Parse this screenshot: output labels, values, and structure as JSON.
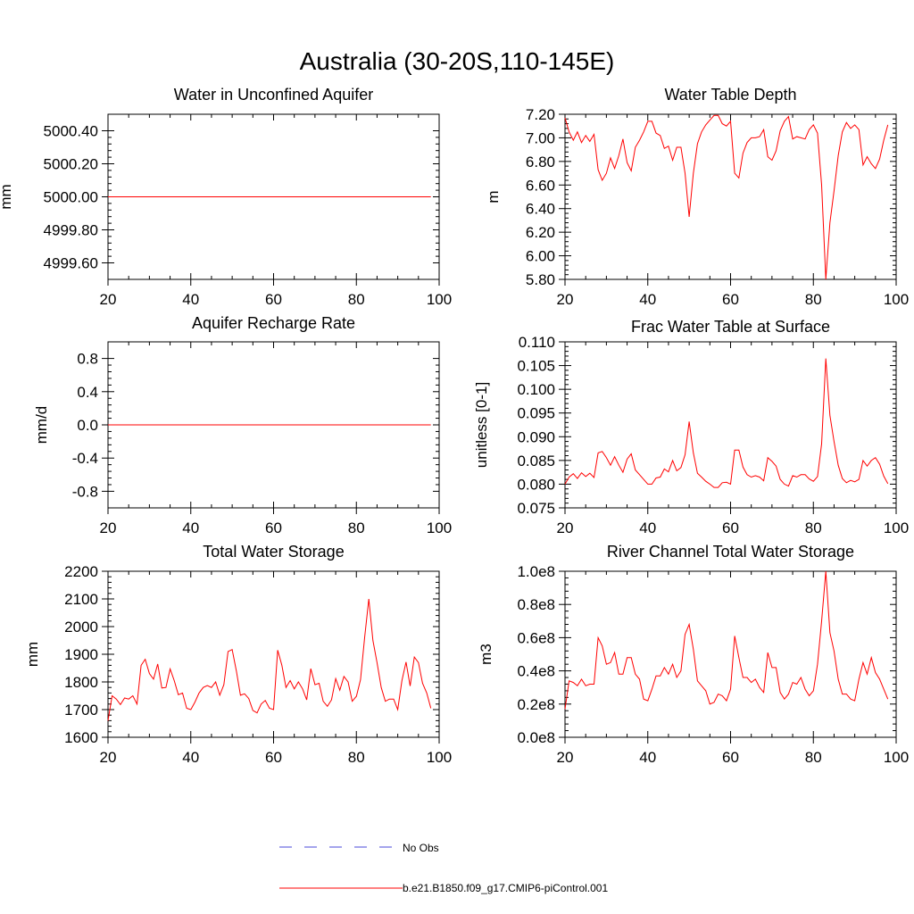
{
  "title": "Australia (30-20S,110-145E)",
  "legend": {
    "entries": [
      {
        "label": "No Obs",
        "style": "dashed",
        "color": "#4a4ad8"
      },
      {
        "label": "b.e21.B1850.f09_g17.CMIP6-piControl.001",
        "style": "solid",
        "color": "#ff0000"
      }
    ]
  },
  "chart_data": [
    {
      "type": "line",
      "title": "Water in Unconfined Aquifer",
      "ylabel": "mm",
      "xlim": [
        20,
        100
      ],
      "ylim": [
        4999.5,
        5000.5
      ],
      "xticks": [
        20,
        40,
        60,
        80,
        100
      ],
      "xtick_labels": [
        "20",
        "40",
        "60",
        "80",
        "100"
      ],
      "yticks": [
        4999.6,
        4999.8,
        5000.0,
        5000.2,
        5000.4
      ],
      "ytick_labels": [
        "4999.60",
        "4999.80",
        "5000.00",
        "5000.20",
        "5000.40"
      ],
      "x_start": 20,
      "series": [
        {
          "name": "b.e21.B1850.f09_g17.CMIP6-piControl.001",
          "color": "#ff0000",
          "values": [
            5000,
            5000,
            5000,
            5000,
            5000,
            5000,
            5000,
            5000,
            5000,
            5000,
            5000,
            5000,
            5000,
            5000,
            5000,
            5000,
            5000,
            5000,
            5000,
            5000,
            5000,
            5000,
            5000,
            5000,
            5000,
            5000,
            5000,
            5000,
            5000,
            5000,
            5000,
            5000,
            5000,
            5000,
            5000,
            5000,
            5000,
            5000,
            5000,
            5000,
            5000,
            5000,
            5000,
            5000,
            5000,
            5000,
            5000,
            5000,
            5000,
            5000,
            5000,
            5000,
            5000,
            5000,
            5000,
            5000,
            5000,
            5000,
            5000,
            5000,
            5000,
            5000,
            5000,
            5000,
            5000,
            5000,
            5000,
            5000,
            5000,
            5000,
            5000,
            5000,
            5000,
            5000,
            5000,
            5000,
            5000,
            5000,
            5000
          ]
        }
      ]
    },
    {
      "type": "line",
      "title": "Water Table Depth",
      "ylabel": "m",
      "xlim": [
        20,
        100
      ],
      "ylim": [
        5.8,
        7.2
      ],
      "xticks": [
        20,
        40,
        60,
        80,
        100
      ],
      "xtick_labels": [
        "20",
        "40",
        "60",
        "80",
        "100"
      ],
      "yticks": [
        5.8,
        6.0,
        6.2,
        6.4,
        6.6,
        6.8,
        7.0,
        7.2
      ],
      "ytick_labels": [
        "5.80",
        "6.00",
        "6.20",
        "6.40",
        "6.60",
        "6.80",
        "7.00",
        "7.20"
      ],
      "x_start": 20,
      "series": [
        {
          "name": "b.e21.B1850.f09_g17.CMIP6-piControl.001",
          "color": "#ff0000",
          "values": [
            7.17,
            7.05,
            6.98,
            7.05,
            6.96,
            7.02,
            6.97,
            7.03,
            6.73,
            6.64,
            6.7,
            6.83,
            6.74,
            6.85,
            6.99,
            6.79,
            6.72,
            6.92,
            6.98,
            7.05,
            7.14,
            7.14,
            7.04,
            7.02,
            6.91,
            6.93,
            6.81,
            6.92,
            6.92,
            6.7,
            6.33,
            6.7,
            6.95,
            7.05,
            7.11,
            7.15,
            7.19,
            7.19,
            7.12,
            7.1,
            7.14,
            6.7,
            6.66,
            6.87,
            6.96,
            7.0,
            7.0,
            7.01,
            7.07,
            6.84,
            6.81,
            6.89,
            7.06,
            7.14,
            7.18,
            6.99,
            7.01,
            7.0,
            6.99,
            7.07,
            7.11,
            7.04,
            6.6,
            5.8,
            6.28,
            6.55,
            6.85,
            7.05,
            7.13,
            7.08,
            7.11,
            7.07,
            6.77,
            6.84,
            6.78,
            6.74,
            6.82,
            6.98,
            7.11
          ]
        }
      ]
    },
    {
      "type": "line",
      "title": "Aquifer Recharge Rate",
      "ylabel": "mm/d",
      "xlim": [
        20,
        100
      ],
      "ylim": [
        -1.0,
        1.0
      ],
      "xticks": [
        20,
        40,
        60,
        80,
        100
      ],
      "xtick_labels": [
        "20",
        "40",
        "60",
        "80",
        "100"
      ],
      "yticks": [
        -0.8,
        -0.4,
        0.0,
        0.4,
        0.8
      ],
      "ytick_labels": [
        "-0.8",
        "-0.4",
        "0.0",
        "0.4",
        "0.8"
      ],
      "x_start": 20,
      "series": [
        {
          "name": "b.e21.B1850.f09_g17.CMIP6-piControl.001",
          "color": "#ff0000",
          "values": [
            0,
            0,
            0,
            0,
            0,
            0,
            0,
            0,
            0,
            0,
            0,
            0,
            0,
            0,
            0,
            0,
            0,
            0,
            0,
            0,
            0,
            0,
            0,
            0,
            0,
            0,
            0,
            0,
            0,
            0,
            0,
            0,
            0,
            0,
            0,
            0,
            0,
            0,
            0,
            0,
            0,
            0,
            0,
            0,
            0,
            0,
            0,
            0,
            0,
            0,
            0,
            0,
            0,
            0,
            0,
            0,
            0,
            0,
            0,
            0,
            0,
            0,
            0,
            0,
            0,
            0,
            0,
            0,
            0,
            0,
            0,
            0,
            0,
            0,
            0,
            0,
            0,
            0,
            0
          ]
        }
      ]
    },
    {
      "type": "line",
      "title": "Frac Water Table at Surface",
      "ylabel": "unitless [0-1]",
      "xlim": [
        20,
        100
      ],
      "ylim": [
        0.075,
        0.11
      ],
      "xticks": [
        20,
        40,
        60,
        80,
        100
      ],
      "xtick_labels": [
        "20",
        "40",
        "60",
        "80",
        "100"
      ],
      "yticks": [
        0.075,
        0.08,
        0.085,
        0.09,
        0.095,
        0.1,
        0.105,
        0.11
      ],
      "ytick_labels": [
        "0.075",
        "0.080",
        "0.085",
        "0.090",
        "0.095",
        "0.100",
        "0.105",
        "0.110"
      ],
      "x_start": 20,
      "series": [
        {
          "name": "b.e21.B1850.f09_g17.CMIP6-piControl.001",
          "color": "#ff0000",
          "values": [
            0.08,
            0.0815,
            0.0822,
            0.0812,
            0.0824,
            0.0816,
            0.0823,
            0.0814,
            0.0866,
            0.0869,
            0.0856,
            0.084,
            0.0858,
            0.084,
            0.0825,
            0.0853,
            0.0864,
            0.083,
            0.082,
            0.081,
            0.08,
            0.08,
            0.0813,
            0.0815,
            0.0832,
            0.0826,
            0.085,
            0.0828,
            0.0835,
            0.0862,
            0.0932,
            0.0866,
            0.0823,
            0.0815,
            0.0806,
            0.08,
            0.0793,
            0.0793,
            0.0803,
            0.0804,
            0.08,
            0.0872,
            0.0872,
            0.0836,
            0.082,
            0.0815,
            0.0818,
            0.0815,
            0.0807,
            0.0856,
            0.0848,
            0.0838,
            0.081,
            0.08,
            0.0796,
            0.0818,
            0.0815,
            0.082,
            0.082,
            0.0811,
            0.0806,
            0.0816,
            0.0885,
            0.1065,
            0.0945,
            0.089,
            0.084,
            0.0812,
            0.0803,
            0.0808,
            0.0805,
            0.081,
            0.085,
            0.0838,
            0.085,
            0.0856,
            0.0842,
            0.0817,
            0.0801
          ]
        }
      ]
    },
    {
      "type": "line",
      "title": "Total Water Storage",
      "ylabel": "mm",
      "xlim": [
        20,
        100
      ],
      "ylim": [
        1600,
        2200
      ],
      "xticks": [
        20,
        40,
        60,
        80,
        100
      ],
      "xtick_labels": [
        "20",
        "40",
        "60",
        "80",
        "100"
      ],
      "yticks": [
        1600,
        1700,
        1800,
        1900,
        2000,
        2100,
        2200
      ],
      "ytick_labels": [
        "1600",
        "1700",
        "1800",
        "1900",
        "2000",
        "2100",
        "2200"
      ],
      "x_start": 20,
      "series": [
        {
          "name": "b.e21.B1850.f09_g17.CMIP6-piControl.001",
          "color": "#ff0000",
          "values": [
            1660,
            1750,
            1738,
            1718,
            1742,
            1738,
            1750,
            1720,
            1860,
            1882,
            1830,
            1810,
            1865,
            1778,
            1780,
            1847,
            1805,
            1754,
            1760,
            1705,
            1700,
            1727,
            1760,
            1780,
            1787,
            1780,
            1800,
            1752,
            1790,
            1910,
            1917,
            1840,
            1752,
            1757,
            1740,
            1697,
            1688,
            1720,
            1733,
            1705,
            1700,
            1915,
            1860,
            1780,
            1805,
            1775,
            1800,
            1775,
            1735,
            1848,
            1790,
            1795,
            1730,
            1712,
            1735,
            1812,
            1770,
            1820,
            1800,
            1730,
            1748,
            1808,
            1960,
            2100,
            1950,
            1870,
            1780,
            1730,
            1738,
            1738,
            1700,
            1805,
            1872,
            1785,
            1890,
            1870,
            1795,
            1760,
            1705
          ]
        }
      ]
    },
    {
      "type": "line",
      "title": "River Channel Total Water Storage",
      "ylabel": "m3",
      "xlim": [
        20,
        100
      ],
      "ylim": [
        0,
        100000000
      ],
      "xticks": [
        20,
        40,
        60,
        80,
        100
      ],
      "xtick_labels": [
        "20",
        "40",
        "60",
        "80",
        "100"
      ],
      "yticks": [
        0,
        20000000,
        40000000,
        60000000,
        80000000,
        100000000
      ],
      "ytick_labels": [
        "0.0e8",
        "0.2e8",
        "0.4e8",
        "0.6e8",
        "0.8e8",
        "1.0e8"
      ],
      "x_start": 20,
      "series": [
        {
          "name": "b.e21.B1850.f09_g17.CMIP6-piControl.001",
          "color": "#ff0000",
          "values": [
            17000000,
            34000000,
            33000000,
            31000000,
            35000000,
            31000000,
            32000000,
            32000000,
            60000000,
            55000000,
            44000000,
            45000000,
            51000000,
            38000000,
            38000000,
            48000000,
            48000000,
            38000000,
            35000000,
            23000000,
            22000000,
            29000000,
            37000000,
            37000000,
            42000000,
            38000000,
            44000000,
            36000000,
            40000000,
            62000000,
            68000000,
            53000000,
            34000000,
            31000000,
            28000000,
            20000000,
            21000000,
            26000000,
            25000000,
            22000000,
            29000000,
            61000000,
            48000000,
            36000000,
            36000000,
            33000000,
            35000000,
            30000000,
            27000000,
            51000000,
            42000000,
            42000000,
            27000000,
            23000000,
            26000000,
            33000000,
            32000000,
            36000000,
            29000000,
            25000000,
            28000000,
            44000000,
            70000000,
            100000000,
            63000000,
            52000000,
            35000000,
            26000000,
            26000000,
            23000000,
            22000000,
            35000000,
            45000000,
            38000000,
            48000000,
            39000000,
            35000000,
            29000000,
            23000000
          ]
        }
      ]
    }
  ]
}
